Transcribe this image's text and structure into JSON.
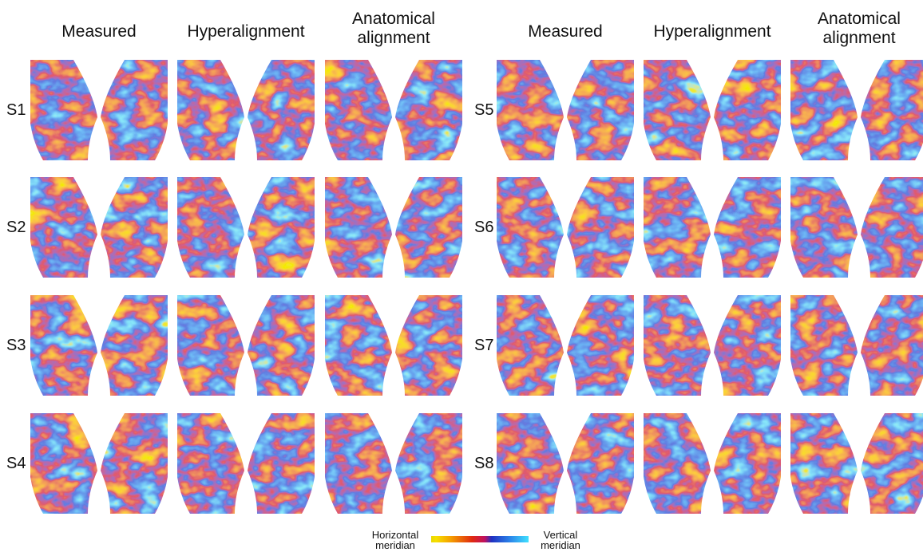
{
  "left": {
    "columns": [
      "Measured",
      "Hyperalignment",
      "Anatomical alignment"
    ],
    "rows": [
      "S1",
      "S2",
      "S3",
      "S4"
    ]
  },
  "right": {
    "columns": [
      "Measured",
      "Hyperalignment",
      "Anatomical alignment"
    ],
    "rows": [
      "S5",
      "S6",
      "S7",
      "S8"
    ]
  },
  "colorbar": {
    "min_label": "Horizontal meridian",
    "max_label": "Vertical meridian"
  }
}
